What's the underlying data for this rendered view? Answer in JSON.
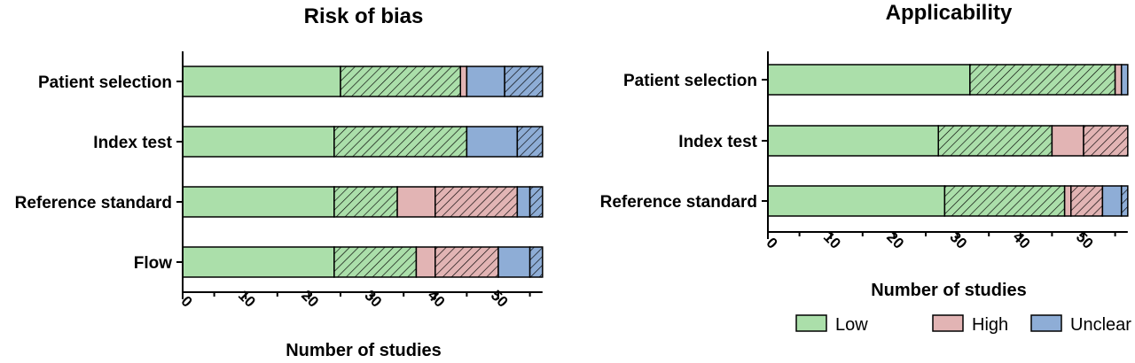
{
  "colors": {
    "low": "#abdfaa",
    "high": "#e2b4b4",
    "unclear": "#8eadd6"
  },
  "legend": {
    "position": "bottom-right",
    "items": [
      {
        "label": "Low",
        "color": "#abdfaa"
      },
      {
        "label": "High",
        "color": "#e2b4b4"
      },
      {
        "label": "Unclear",
        "color": "#8eadd6"
      }
    ]
  },
  "chart_data": [
    {
      "type": "bar",
      "orientation": "horizontal",
      "stacked": true,
      "title": "Risk of bias",
      "xlabel": "Number of studies",
      "ylabel": "",
      "xlim": [
        0,
        57
      ],
      "xticks": [
        0,
        10,
        20,
        30,
        40,
        50
      ],
      "grid": false,
      "categories": [
        "Patient selection",
        "Index test",
        "Reference standard",
        "Flow"
      ],
      "segments": [
        "Low (solid)",
        "Low (hatched)",
        "High (solid)",
        "High (hatched)",
        "Unclear (solid)",
        "Unclear (hatched)"
      ],
      "values": [
        [
          25,
          19,
          1,
          0,
          6,
          6
        ],
        [
          24,
          21,
          0,
          0,
          8,
          4
        ],
        [
          24,
          10,
          6,
          13,
          2,
          2
        ],
        [
          24,
          13,
          3,
          10,
          5,
          2
        ]
      ]
    },
    {
      "type": "bar",
      "orientation": "horizontal",
      "stacked": true,
      "title": "Applicability",
      "xlabel": "Number of studies",
      "ylabel": "",
      "xlim": [
        0,
        57
      ],
      "xticks": [
        0,
        10,
        20,
        30,
        40,
        50
      ],
      "grid": false,
      "categories": [
        "Patient selection",
        "Index test",
        "Reference standard"
      ],
      "segments": [
        "Low (solid)",
        "Low (hatched)",
        "High (solid)",
        "High (hatched)",
        "Unclear (solid)",
        "Unclear (hatched)"
      ],
      "values": [
        [
          32,
          23,
          1,
          0,
          1,
          0
        ],
        [
          27,
          18,
          5,
          7,
          0,
          0
        ],
        [
          28,
          19,
          1,
          5,
          3,
          1
        ]
      ]
    }
  ]
}
